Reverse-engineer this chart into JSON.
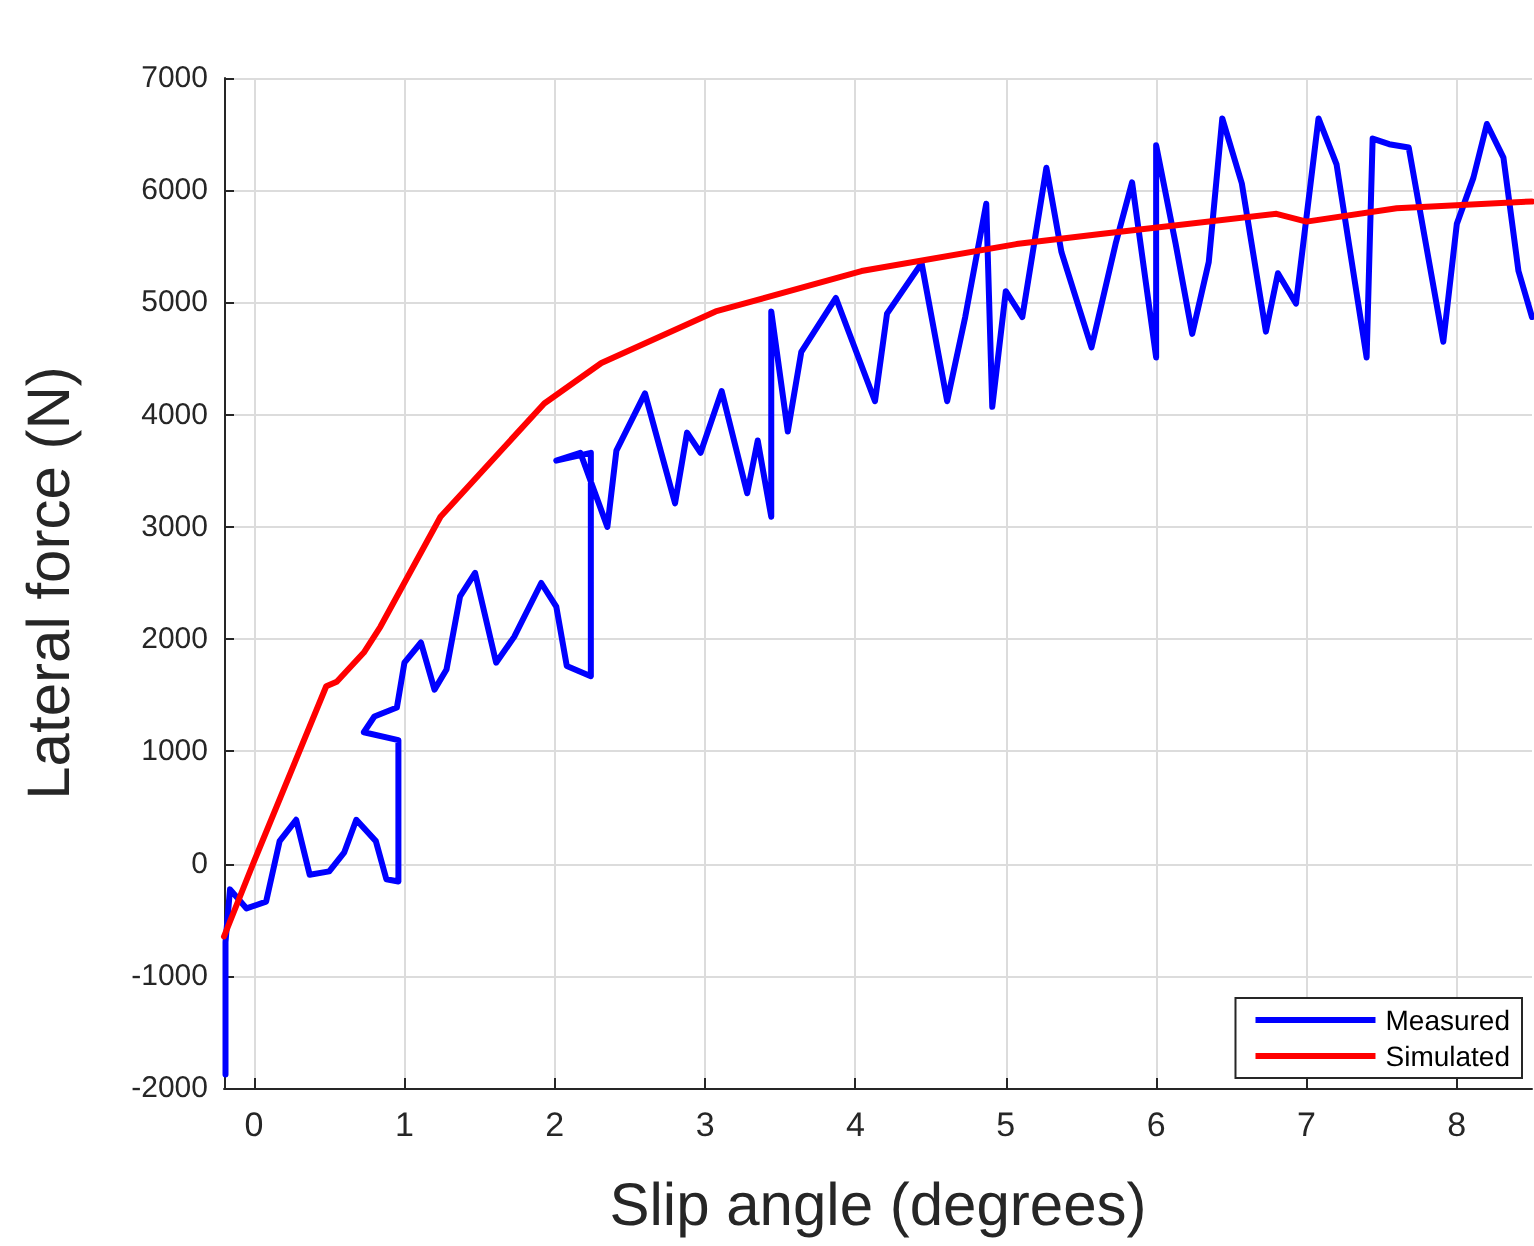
{
  "chart_data": {
    "type": "line",
    "xlabel": "Slip angle (degrees)",
    "ylabel": "Lateral force (N)",
    "xlim": [
      -0.2,
      8.5
    ],
    "xticks": [
      0,
      1,
      2,
      3,
      4,
      5,
      6,
      7,
      8
    ],
    "ylim": [
      -2000,
      7000
    ],
    "yticks": [
      -2000,
      -1000,
      0,
      1000,
      2000,
      3000,
      4000,
      5000,
      6000,
      7000
    ],
    "grid": true,
    "legend": "bottom right",
    "marker": "none",
    "line_style": "solid",
    "series": [
      {
        "name": "Measured",
        "color": "#0000ff",
        "x": [
          -0.19,
          -0.19,
          -0.16,
          -0.05,
          0.08,
          0.17,
          0.28,
          0.37,
          0.5,
          0.6,
          0.68,
          0.81,
          0.88,
          0.96,
          0.96,
          0.73,
          0.8,
          0.95,
          1.0,
          1.11,
          1.2,
          1.28,
          1.37,
          1.47,
          1.61,
          1.73,
          1.91,
          2.01,
          2.08,
          2.24,
          2.24,
          2.01,
          2.17,
          2.35,
          2.41,
          2.6,
          2.8,
          2.88,
          2.97,
          3.11,
          3.28,
          3.35,
          3.44,
          3.44,
          3.55,
          3.64,
          3.87,
          4.13,
          4.21,
          4.44,
          4.61,
          4.73,
          4.87,
          4.91,
          5.0,
          5.11,
          5.27,
          5.37,
          5.57,
          5.73,
          5.84,
          6.0,
          6.0,
          6.13,
          6.24,
          6.35,
          6.44,
          6.57,
          6.73,
          6.81,
          6.93,
          7.08,
          7.2,
          7.4,
          7.44,
          7.55,
          7.68,
          7.91,
          8.0,
          8.11,
          8.2,
          8.31,
          8.41,
          8.5
        ],
        "values": [
          -1880,
          -700,
          -230,
          -400,
          -340,
          200,
          390,
          -100,
          -70,
          100,
          390,
          200,
          -140,
          -160,
          1100,
          1170,
          1310,
          1390,
          1790,
          1970,
          1550,
          1730,
          2380,
          2590,
          1790,
          2020,
          2500,
          2290,
          1760,
          1670,
          3660,
          3590,
          3660,
          3000,
          3680,
          4190,
          3210,
          3840,
          3660,
          4210,
          3300,
          3770,
          3090,
          4920,
          3850,
          4560,
          5040,
          4120,
          4900,
          5350,
          4120,
          4870,
          5880,
          4070,
          5100,
          4870,
          6200,
          5450,
          4600,
          5520,
          6070,
          4510,
          6400,
          5520,
          4720,
          5360,
          6640,
          6060,
          4740,
          5260,
          4990,
          6640,
          6230,
          4510,
          6460,
          6410,
          6380,
          4650,
          5700,
          6110,
          6590,
          6290,
          5280,
          4870
        ]
      },
      {
        "name": "Simulated",
        "color": "#ff0000",
        "x": [
          -0.2,
          0,
          0.48,
          0.55,
          0.73,
          0.84,
          1.24,
          1.93,
          2.31,
          3.07,
          4.04,
          5.07,
          5.63,
          6.8,
          7.0,
          7.6,
          8.5
        ],
        "values": [
          -650,
          20,
          1580,
          1620,
          1880,
          2110,
          3090,
          4100,
          4460,
          4920,
          5280,
          5520,
          5610,
          5790,
          5720,
          5840,
          5900
        ]
      }
    ]
  }
}
